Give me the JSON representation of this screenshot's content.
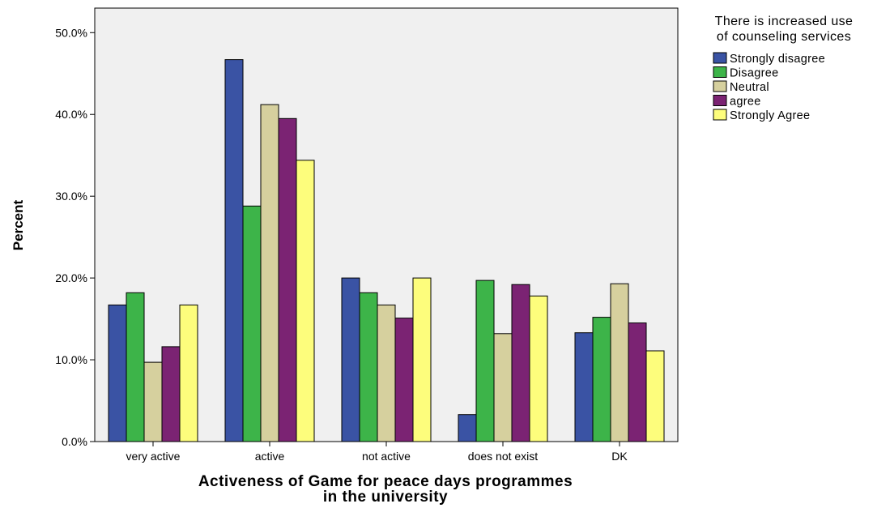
{
  "chart_data": {
    "type": "bar",
    "categories": [
      "very active",
      "active",
      "not active",
      "does not exist",
      "DK"
    ],
    "series": [
      {
        "name": "Strongly disagree",
        "color": "#3a53a4",
        "values": [
          16.7,
          46.7,
          20.0,
          3.3,
          13.3
        ]
      },
      {
        "name": "Disagree",
        "color": "#3db449",
        "values": [
          18.2,
          28.8,
          18.2,
          19.7,
          15.2
        ]
      },
      {
        "name": "Neutral",
        "color": "#d6d09e",
        "values": [
          9.7,
          41.2,
          16.7,
          13.2,
          19.3
        ]
      },
      {
        "name": "agree",
        "color": "#7b2373",
        "values": [
          11.6,
          39.5,
          15.1,
          19.2,
          14.5
        ]
      },
      {
        "name": "Strongly Agree",
        "color": "#fdfd7c",
        "values": [
          16.7,
          34.4,
          20.0,
          17.8,
          11.1
        ]
      }
    ],
    "xlabel_lines": [
      "Activeness of Game for peace days programmes",
      "in the university"
    ],
    "ylabel": "Percent",
    "ylim": [
      0,
      53
    ],
    "yticks": [
      {
        "value": 0,
        "label": "0.0%"
      },
      {
        "value": 10,
        "label": "10.0%"
      },
      {
        "value": 20,
        "label": "20.0%"
      },
      {
        "value": 30,
        "label": "30.0%"
      },
      {
        "value": 40,
        "label": "40.0%"
      },
      {
        "value": 50,
        "label": "50.0%"
      }
    ],
    "legend": {
      "title_lines": [
        "There is increased use",
        "of counseling services"
      ],
      "placement": "top-right, outside plot"
    },
    "plot_background": "#f0f0f0",
    "grid": false
  }
}
